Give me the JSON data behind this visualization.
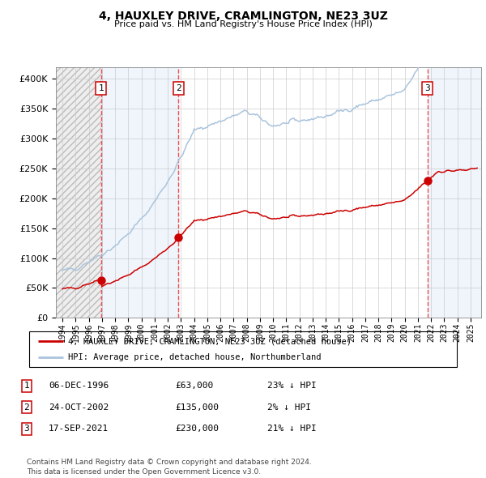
{
  "title": "4, HAUXLEY DRIVE, CRAMLINGTON, NE23 3UZ",
  "subtitle": "Price paid vs. HM Land Registry's House Price Index (HPI)",
  "sale1_date": 1996.92,
  "sale1_price": 63000,
  "sale2_date": 2002.81,
  "sale2_price": 135000,
  "sale3_date": 2021.71,
  "sale3_price": 230000,
  "hpi_line_color": "#aac4dd",
  "price_line_color": "#cc0000",
  "sale_marker_color": "#cc0000",
  "vline_color": "#ee3333",
  "legend1_label": "4, HAUXLEY DRIVE, CRAMLINGTON, NE23 3UZ (detached house)",
  "legend2_label": "HPI: Average price, detached house, Northumberland",
  "table_rows": [
    {
      "num": "1",
      "date": "06-DEC-1996",
      "price": "£63,000",
      "hpi": "23% ↓ HPI"
    },
    {
      "num": "2",
      "date": "24-OCT-2002",
      "price": "£135,000",
      "hpi": "2% ↓ HPI"
    },
    {
      "num": "3",
      "date": "17-SEP-2021",
      "price": "£230,000",
      "hpi": "21% ↓ HPI"
    }
  ],
  "footer": "Contains HM Land Registry data © Crown copyright and database right 2024.\nThis data is licensed under the Open Government Licence v3.0.",
  "xmin": 1993.5,
  "xmax": 2025.8,
  "ymin": 0,
  "ymax": 420000
}
